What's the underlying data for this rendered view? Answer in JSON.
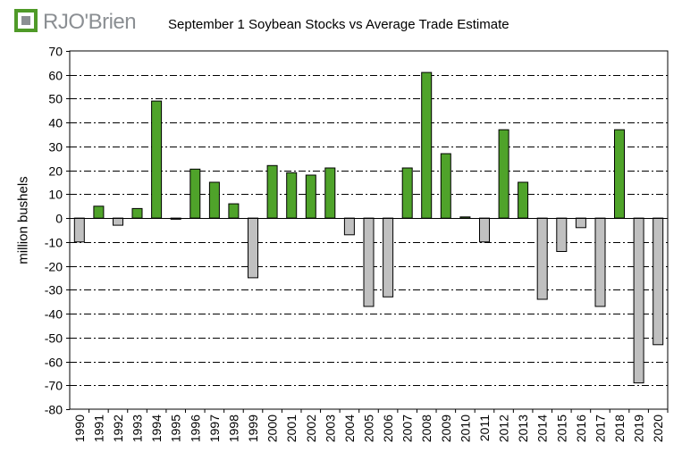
{
  "logo": {
    "text": "RJO'Brien",
    "icon": "rjobrien-logo-mark",
    "colors": {
      "green": "#4f9a28",
      "gray": "#8b8f93"
    }
  },
  "chart_data": {
    "type": "bar",
    "title": "September 1 Soybean Stocks vs Average Trade Estimate",
    "xlabel": "",
    "ylabel": "million bushels",
    "ylim": [
      -80,
      70
    ],
    "yticks": [
      70,
      60,
      50,
      40,
      30,
      20,
      10,
      0,
      -10,
      -20,
      -30,
      -40,
      -50,
      -60,
      -70,
      -80
    ],
    "grid": true,
    "legend": "none",
    "colors": {
      "positive": "#4fa32a",
      "negative": "#c0c0c0",
      "outline": "#000000"
    },
    "categories": [
      "1990",
      "1991",
      "1992",
      "1993",
      "1994",
      "1995",
      "1996",
      "1997",
      "1998",
      "1999",
      "2000",
      "2001",
      "2002",
      "2003",
      "2004",
      "2005",
      "2006",
      "2007",
      "2008",
      "2009",
      "2010",
      "2011",
      "2012",
      "2013",
      "2014",
      "2015",
      "2016",
      "2017",
      "2018",
      "2019",
      "2020"
    ],
    "values": [
      -10,
      5,
      -3,
      4,
      49,
      -0.5,
      20.5,
      15,
      6,
      -25,
      22,
      19,
      18,
      21,
      -7,
      -37,
      -33,
      21,
      61,
      27,
      0.5,
      -10,
      37,
      15,
      -34,
      -14,
      -4,
      -37,
      37,
      -69,
      -53
    ]
  }
}
